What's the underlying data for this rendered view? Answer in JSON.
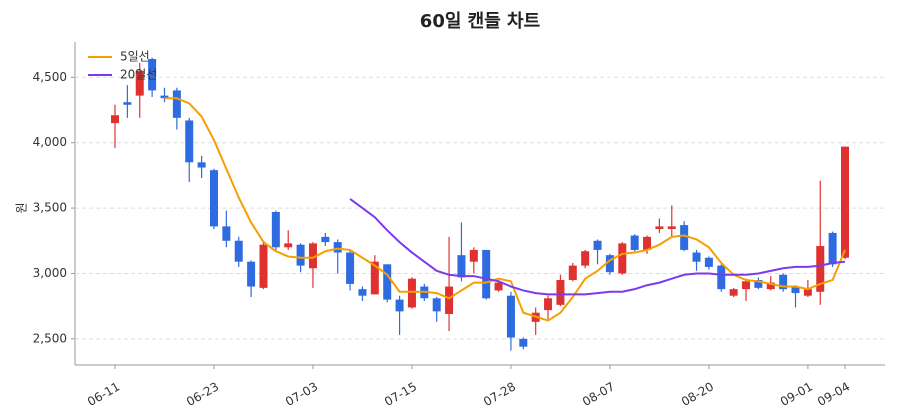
{
  "chart_data": {
    "type": "candlestick",
    "title": "60일 캔들 차트",
    "y_label": "원",
    "categories": [
      "06-11",
      null,
      null,
      null,
      null,
      null,
      null,
      null,
      "06-23",
      null,
      null,
      null,
      null,
      null,
      null,
      null,
      "07-03",
      null,
      null,
      null,
      null,
      null,
      null,
      null,
      "07-15",
      null,
      null,
      null,
      null,
      null,
      null,
      null,
      "07-28",
      null,
      null,
      null,
      null,
      null,
      null,
      null,
      "08-07",
      null,
      null,
      null,
      null,
      null,
      null,
      null,
      "08-20",
      null,
      null,
      null,
      null,
      null,
      null,
      null,
      "09-01",
      null,
      null,
      "09-04"
    ],
    "open": [
      4150,
      4310,
      4360,
      4640,
      4360,
      4400,
      4170,
      3850,
      3790,
      3360,
      3250,
      3090,
      2890,
      3470,
      3200,
      3220,
      3040,
      3280,
      3240,
      3160,
      2880,
      2840,
      3070,
      2800,
      2740,
      2900,
      2810,
      2690,
      3140,
      3090,
      3180,
      2870,
      2830,
      2500,
      2630,
      2720,
      2760,
      2950,
      3060,
      3250,
      3140,
      3000,
      3290,
      3180,
      3340,
      3340,
      3370,
      3160,
      3120,
      3060,
      2830,
      2880,
      2950,
      2880,
      2990,
      2900,
      2830,
      2860,
      3310,
      3120
    ],
    "high": [
      4290,
      4440,
      4610,
      4650,
      4420,
      4420,
      4190,
      3900,
      3800,
      3480,
      3280,
      3100,
      3250,
      3480,
      3330,
      3230,
      3240,
      3310,
      3260,
      3180,
      2900,
      3140,
      3070,
      2830,
      2970,
      2920,
      2820,
      3280,
      3390,
      3200,
      3180,
      2950,
      2860,
      2510,
      2740,
      2830,
      2990,
      3080,
      3180,
      3260,
      3150,
      3240,
      3300,
      3290,
      3420,
      3520,
      3400,
      3180,
      3130,
      3070,
      2890,
      2960,
      2970,
      2980,
      3000,
      2910,
      2950,
      3710,
      3320,
      3970
    ],
    "low": [
      3960,
      4190,
      4190,
      4350,
      4310,
      4100,
      3700,
      3730,
      3340,
      3200,
      3050,
      2820,
      2880,
      3180,
      3180,
      3010,
      2890,
      3210,
      3000,
      2870,
      2790,
      2840,
      2780,
      2530,
      2730,
      2790,
      2630,
      2560,
      2940,
      3000,
      2800,
      2860,
      2410,
      2420,
      2530,
      2650,
      2750,
      2940,
      3040,
      3070,
      2990,
      2990,
      3170,
      3150,
      3310,
      3280,
      3170,
      3020,
      3030,
      2860,
      2820,
      2790,
      2880,
      2870,
      2860,
      2740,
      2820,
      2760,
      3050,
      3110
    ],
    "close": [
      4210,
      4290,
      4550,
      4400,
      4340,
      4190,
      3850,
      3810,
      3360,
      3250,
      3090,
      2900,
      3220,
      3200,
      3230,
      3060,
      3230,
      3240,
      3160,
      2920,
      2830,
      3090,
      2800,
      2710,
      2960,
      2810,
      2710,
      2900,
      2970,
      3180,
      2810,
      2930,
      2510,
      2440,
      2700,
      2810,
      2950,
      3060,
      3170,
      3180,
      3010,
      3230,
      3180,
      3280,
      3360,
      3360,
      3180,
      3090,
      3050,
      2880,
      2880,
      2940,
      2890,
      2930,
      2880,
      2850,
      2880,
      3210,
      3070,
      3970
    ],
    "up_color": "#e03131",
    "down_color": "#2f6be0",
    "series": [
      {
        "name": "5일선",
        "color": "#f59f00",
        "values": [
          null,
          null,
          null,
          null,
          4340,
          4340,
          4300,
          4200,
          4020,
          3800,
          3580,
          3390,
          3240,
          3170,
          3130,
          3120,
          3120,
          3170,
          3190,
          3180,
          3120,
          3060,
          2990,
          2860,
          2860,
          2860,
          2850,
          2810,
          2870,
          2930,
          2930,
          2960,
          2940,
          2700,
          2670,
          2640,
          2700,
          2820,
          2960,
          3020,
          3100,
          3150,
          3160,
          3180,
          3220,
          3280,
          3290,
          3260,
          3200,
          3080,
          2990,
          2950,
          2940,
          2920,
          2900,
          2900,
          2880,
          2920,
          2950,
          3180
        ]
      },
      {
        "name": "20일선",
        "color": "#7c3aed",
        "values": [
          null,
          null,
          null,
          null,
          null,
          null,
          null,
          null,
          null,
          null,
          null,
          null,
          null,
          null,
          null,
          null,
          null,
          null,
          null,
          3570,
          3500,
          3430,
          3330,
          3240,
          3160,
          3090,
          3020,
          2990,
          2980,
          2980,
          2960,
          2940,
          2900,
          2870,
          2850,
          2840,
          2840,
          2840,
          2840,
          2850,
          2860,
          2860,
          2880,
          2910,
          2930,
          2960,
          2990,
          3000,
          3000,
          2990,
          2990,
          2990,
          3000,
          3020,
          3040,
          3050,
          3050,
          3060,
          3080,
          3090
        ]
      }
    ],
    "ylim": [
      2300,
      4770
    ],
    "yticks": [
      {
        "value": 2500,
        "label": "2,500"
      },
      {
        "value": 3000,
        "label": "3,000"
      },
      {
        "value": 3500,
        "label": "3,500"
      },
      {
        "value": 4000,
        "label": "4,000"
      },
      {
        "value": 4500,
        "label": "4,500"
      }
    ],
    "grid": true,
    "legend": "top-left"
  }
}
